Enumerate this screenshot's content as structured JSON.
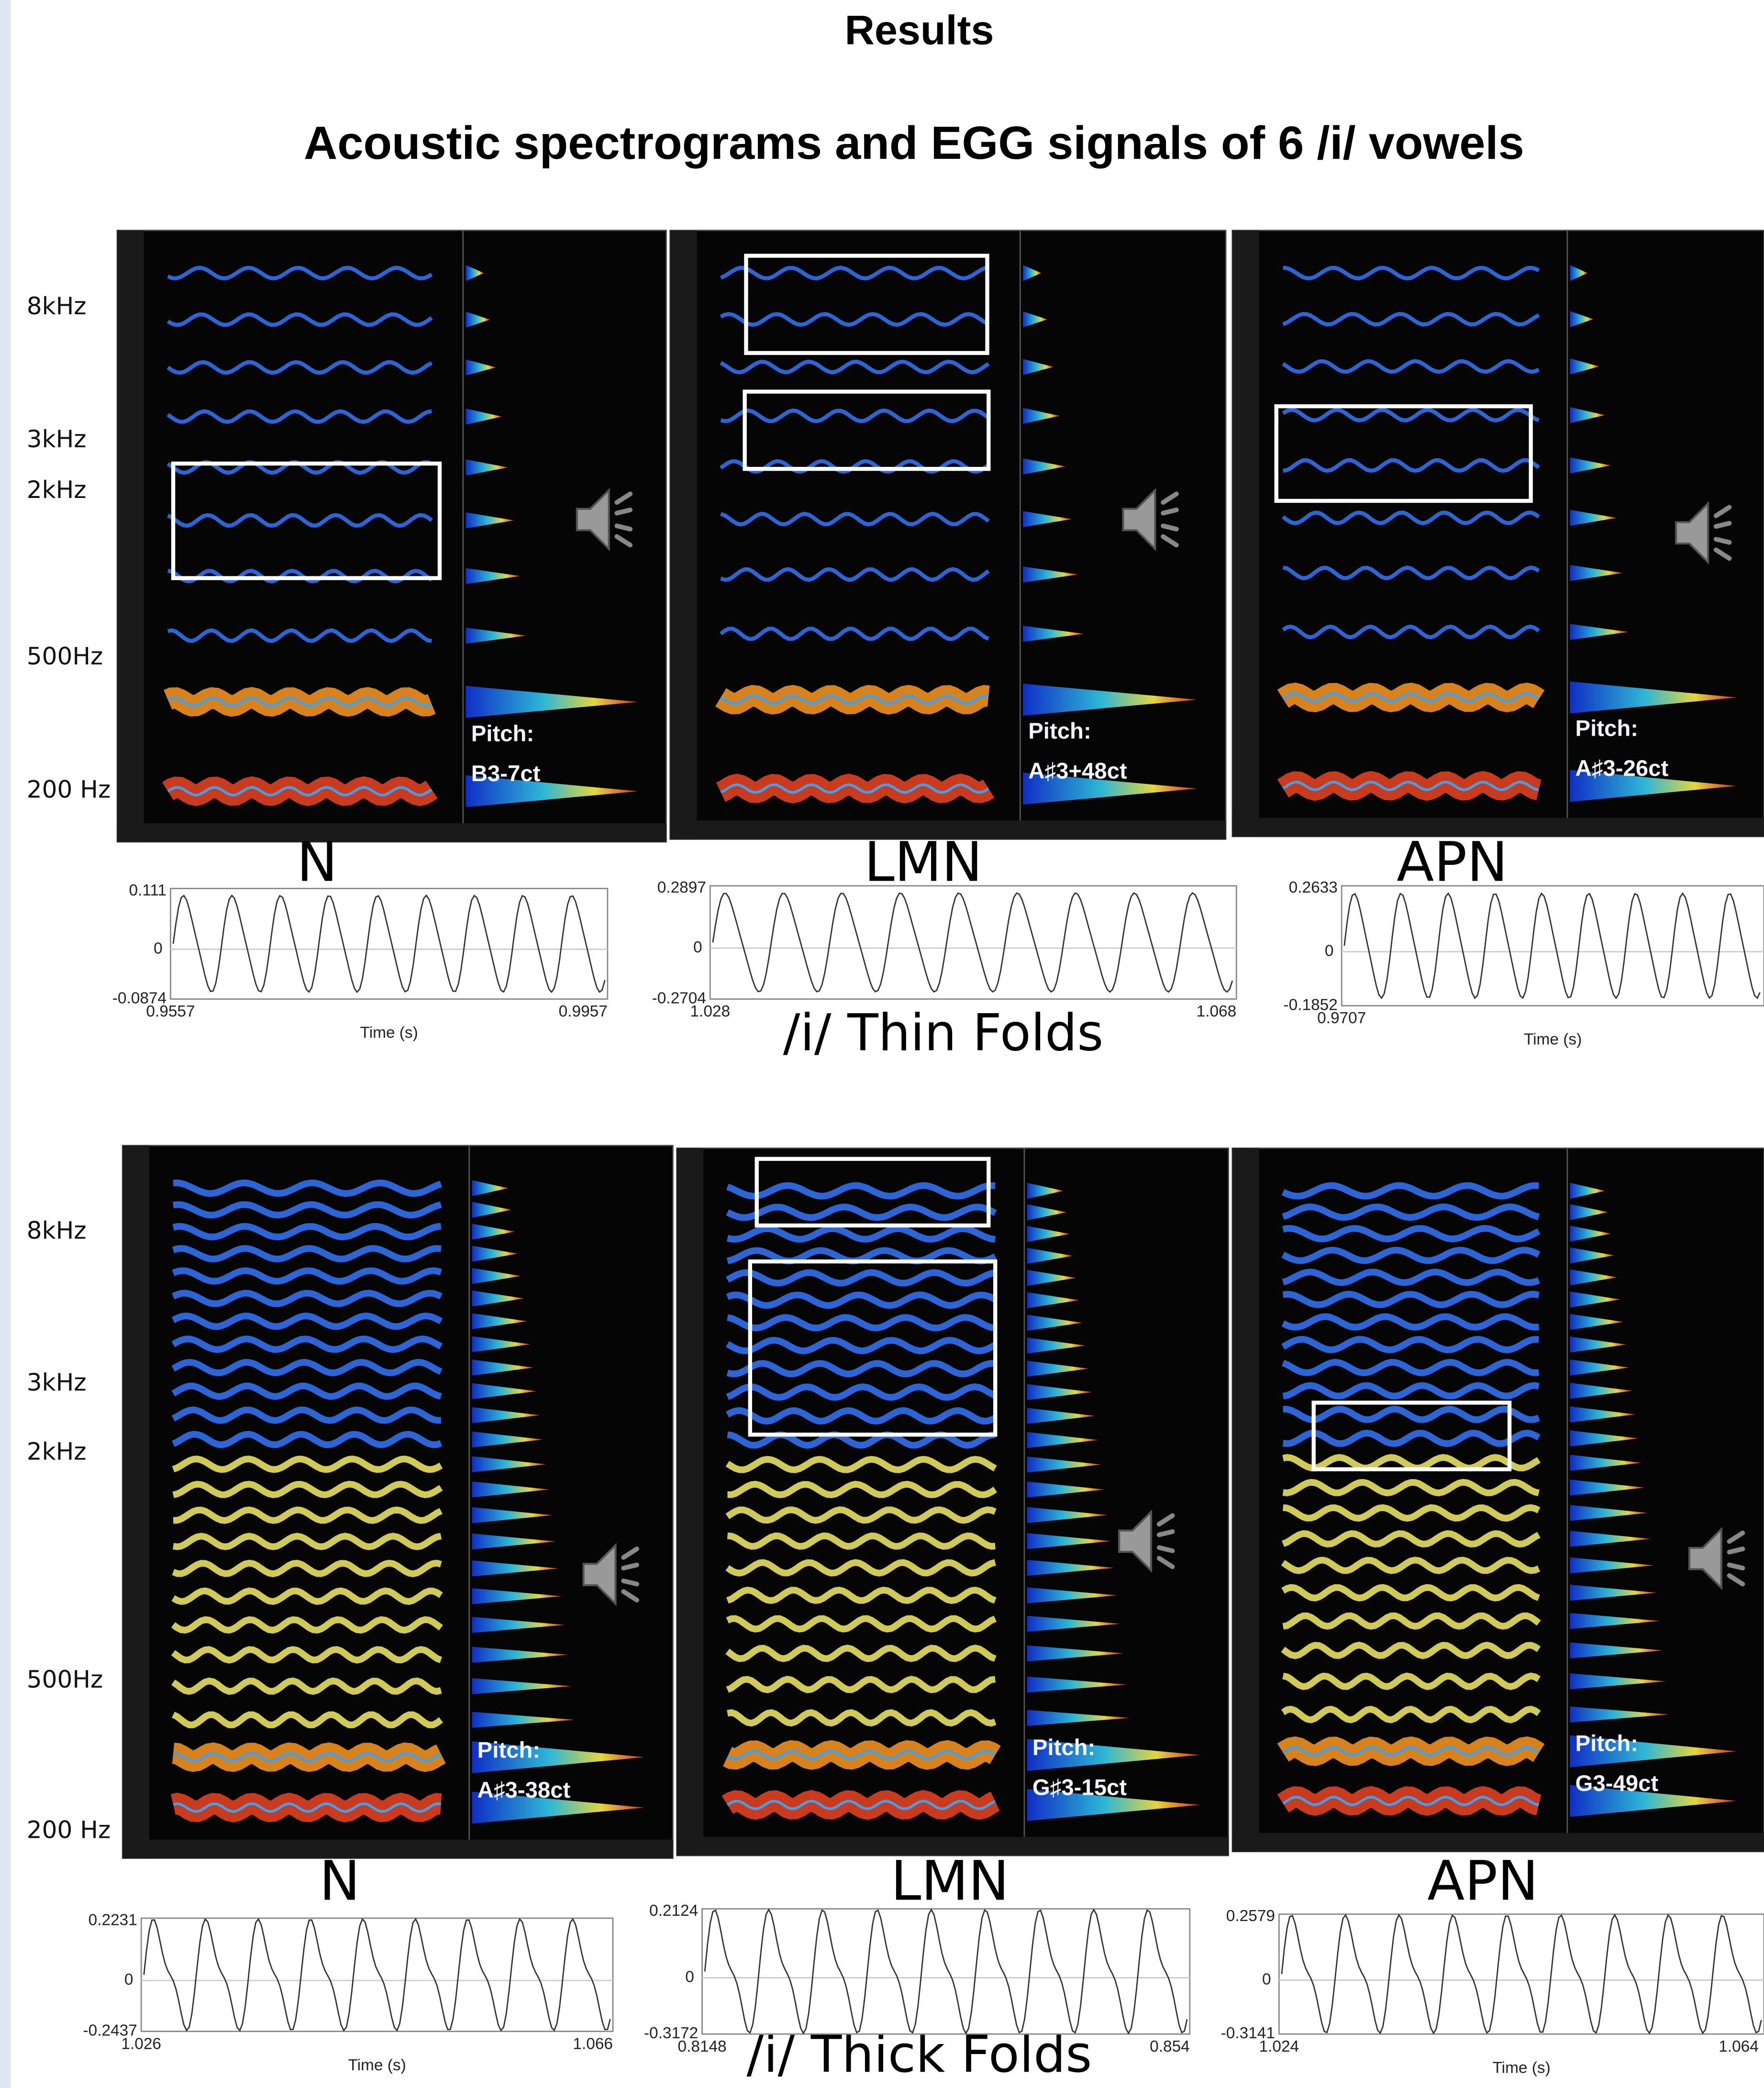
{
  "header": {
    "title": "Results",
    "subtitle": "Acoustic spectrograms and EGG signals of 6 /i/ vowels"
  },
  "rows": [
    {
      "freq_labels": [
        "8kHz",
        "3kHz",
        "2kHz",
        "500Hz",
        "200 Hz"
      ],
      "group_label": "/i/ Thin Folds",
      "panels": [
        {
          "label": "N",
          "pitch": "Pitch:",
          "note": "B3-7ct",
          "egg": {
            "ymax": "0.111",
            "zero": "0",
            "ymin": "-0.0874",
            "xmin": "0.9557",
            "xmax": "0.9957",
            "xlabel": "Time (s)"
          }
        },
        {
          "label": "LMN",
          "pitch": "Pitch:",
          "note": "A♯3+48ct",
          "egg": {
            "ymax": "0.2897",
            "zero": "0",
            "ymin": "-0.2704",
            "xmin": "1.028",
            "xmax": "1.068"
          }
        },
        {
          "label": "APN",
          "pitch": "Pitch:",
          "note": "A♯3-26ct",
          "egg": {
            "ymax": "0.2633",
            "zero": "0",
            "ymin": "-0.1852",
            "xmin": "0.9707",
            "xlabel": "Time (s)"
          }
        }
      ]
    },
    {
      "freq_labels": [
        "8kHz",
        "3kHz",
        "2kHz",
        "500Hz",
        "200 Hz"
      ],
      "group_label": "/i/ Thick Folds",
      "panels": [
        {
          "label": "N",
          "pitch": "Pitch:",
          "note": "A♯3-38ct",
          "egg": {
            "ymax": "0.2231",
            "zero": "0",
            "ymin": "-0.2437",
            "xmin": "1.026",
            "xmax": "1.066",
            "xlabel": "Time (s)"
          }
        },
        {
          "label": "LMN",
          "pitch": "Pitch:",
          "note": "G♯3-15ct",
          "egg": {
            "ymax": "0.2124",
            "zero": "0",
            "ymin": "-0.3172",
            "xmin": "0.8148",
            "xmax": "0.854"
          }
        },
        {
          "label": "APN",
          "pitch": "Pitch:",
          "note": "G3-49ct",
          "egg": {
            "ymax": "0.2579",
            "zero": "0",
            "ymin": "-0.3141",
            "xmin": "1.024",
            "xmax": "1.064",
            "xlabel": "Time (s)"
          }
        }
      ]
    }
  ]
}
